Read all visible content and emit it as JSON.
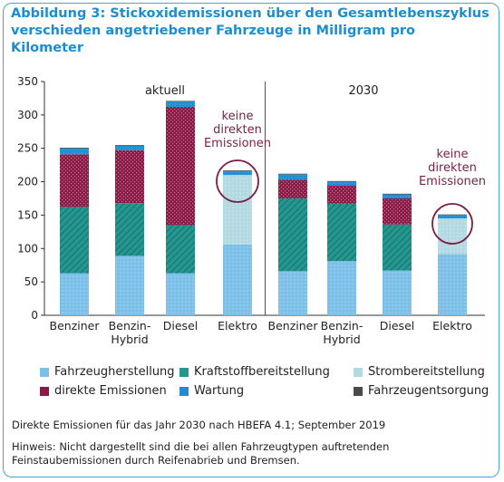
{
  "title": "Abbildung 3: Stickoxidemissionen über den Gesamtlebenszyklus verschieden angetriebener Fahrzeuge in Milligram pro Kilometer",
  "footnote": "Direkte Emissionen für das Jahr 2030 nach HBEFA 4.1; September 2019",
  "hinweis": "Hinweis: Nicht dargestellt sind die bei allen Fahrzeugtypen auftretenden Feinstaubemissionen durch Reifenabrieb und Bremsen.",
  "colors": {
    "fahrzeugherstellung": "#7cbfe8",
    "kraftstoff": "#25978f",
    "strom": "#b3d9e3",
    "direkt": "#8a1a45",
    "wartung": "#1a8ed1",
    "entsorgung": "#4a4a4a",
    "circle": "#7a1f45",
    "divider": "#555555"
  },
  "chart_data": {
    "type": "bar",
    "stacked": true,
    "ylim": [
      0,
      350
    ],
    "yticks": [
      0,
      50,
      100,
      150,
      200,
      250,
      300,
      350
    ],
    "groups": [
      {
        "label": "aktuell",
        "annotation": [
          "keine",
          "direkten",
          "Emissionen"
        ]
      },
      {
        "label": "2030",
        "annotation": [
          "keine",
          "direkten",
          "Emissionen"
        ]
      }
    ],
    "categories": [
      [
        "Benziner"
      ],
      [
        "Benzin-",
        "Hybrid"
      ],
      [
        "Diesel"
      ],
      [
        "Elektro"
      ],
      [
        "Benziner"
      ],
      [
        "Benzin-",
        "Hybrid"
      ],
      [
        "Diesel"
      ],
      [
        "Elektro"
      ]
    ],
    "series": [
      {
        "name": "Fahrzeugherstellung",
        "key": "fahrzeugherstellung",
        "values": [
          63,
          89,
          63,
          106,
          66,
          81,
          67,
          92
        ]
      },
      {
        "name": "Kraftstoffbereitstellung",
        "key": "kraftstoff",
        "values": [
          99,
          79,
          72,
          0,
          109,
          86,
          69,
          0
        ]
      },
      {
        "name": "Strombereitstellung",
        "key": "strom",
        "values": [
          0,
          0,
          0,
          104,
          0,
          0,
          0,
          53
        ]
      },
      {
        "name": "direkte Emissionen",
        "key": "direkt",
        "values": [
          79,
          79,
          177,
          0,
          28,
          27,
          39,
          0
        ]
      },
      {
        "name": "Wartung",
        "key": "wartung",
        "values": [
          9,
          7,
          8,
          6,
          8,
          6,
          6,
          5
        ]
      },
      {
        "name": "Fahrzeugentsorgung",
        "key": "entsorgung",
        "values": [
          1,
          1,
          1,
          1,
          1,
          1,
          1,
          1
        ]
      }
    ],
    "legend": [
      [
        "Fahrzeugherstellung",
        "Kraftstoffbereitstellung",
        "Strombereitstellung"
      ],
      [
        "direkte Emissionen",
        "Wartung",
        "Fahrzeugentsorgung"
      ]
    ]
  }
}
